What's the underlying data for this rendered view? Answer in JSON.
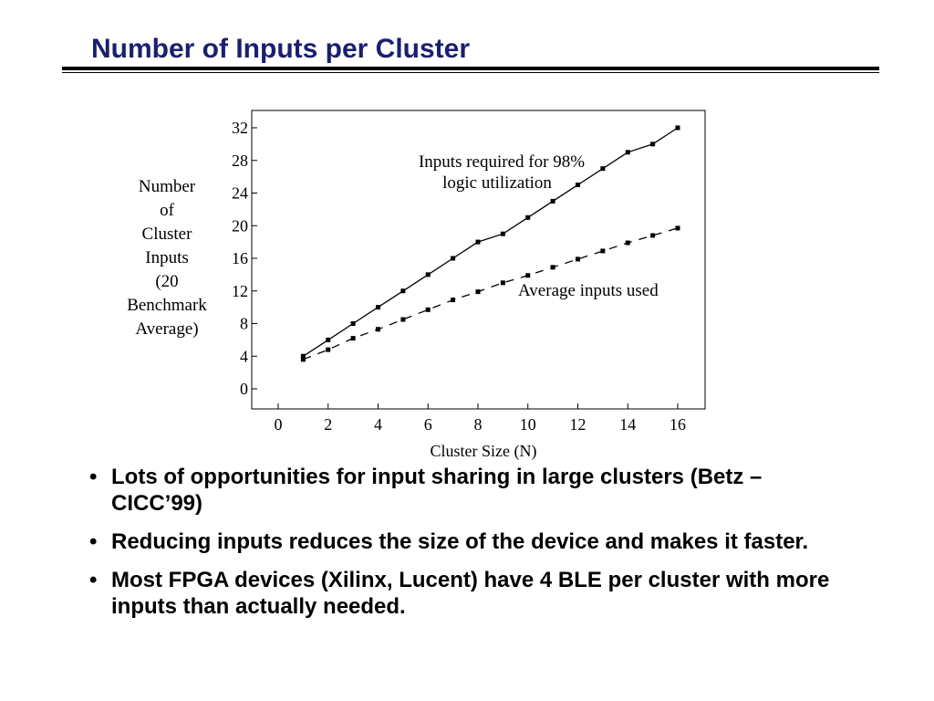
{
  "title": "Number of Inputs per Cluster",
  "chart_data": {
    "type": "line",
    "title": "",
    "xlabel": "Cluster Size (N)",
    "ylabel_lines": [
      "Number",
      "of",
      "Cluster",
      "Inputs",
      "(20",
      "Benchmark",
      "Average)"
    ],
    "xlim": [
      0,
      16
    ],
    "ylim": [
      0,
      32
    ],
    "xticks": [
      "0",
      "2",
      "4",
      "6",
      "8",
      "10",
      "12",
      "14",
      "16"
    ],
    "yticks": [
      "0",
      "4",
      "8",
      "12",
      "16",
      "20",
      "24",
      "28",
      "32"
    ],
    "grid": false,
    "x": [
      1,
      2,
      3,
      4,
      5,
      6,
      7,
      8,
      9,
      10,
      11,
      12,
      13,
      14,
      15,
      16
    ],
    "series": [
      {
        "name": "Inputs required for 98% logic utilization",
        "label_lines": [
          "Inputs required for 98%",
          "logic utilization"
        ],
        "style": "solid",
        "values": [
          4,
          6,
          8,
          10,
          12,
          14,
          16,
          18,
          19,
          21,
          23,
          25,
          27,
          29,
          30,
          32
        ]
      },
      {
        "name": "Average inputs used",
        "label_lines": [
          "Average inputs used"
        ],
        "style": "dashed",
        "values": [
          3.6,
          4.8,
          6.2,
          7.3,
          8.5,
          9.7,
          10.9,
          11.9,
          13.0,
          13.9,
          14.9,
          15.9,
          16.9,
          17.9,
          18.8,
          19.7
        ]
      }
    ]
  },
  "bullets": [
    {
      "marker": "•",
      "text": "Lots of opportunities for input sharing in large clusters (Betz – CICC’99)"
    },
    {
      "marker": "•",
      "text": "Reducing inputs reduces the size of the device and makes it faster."
    },
    {
      "marker": "•",
      "text": "Most FPGA devices (Xilinx, Lucent) have 4 BLE per cluster with more inputs than actually needed."
    }
  ]
}
